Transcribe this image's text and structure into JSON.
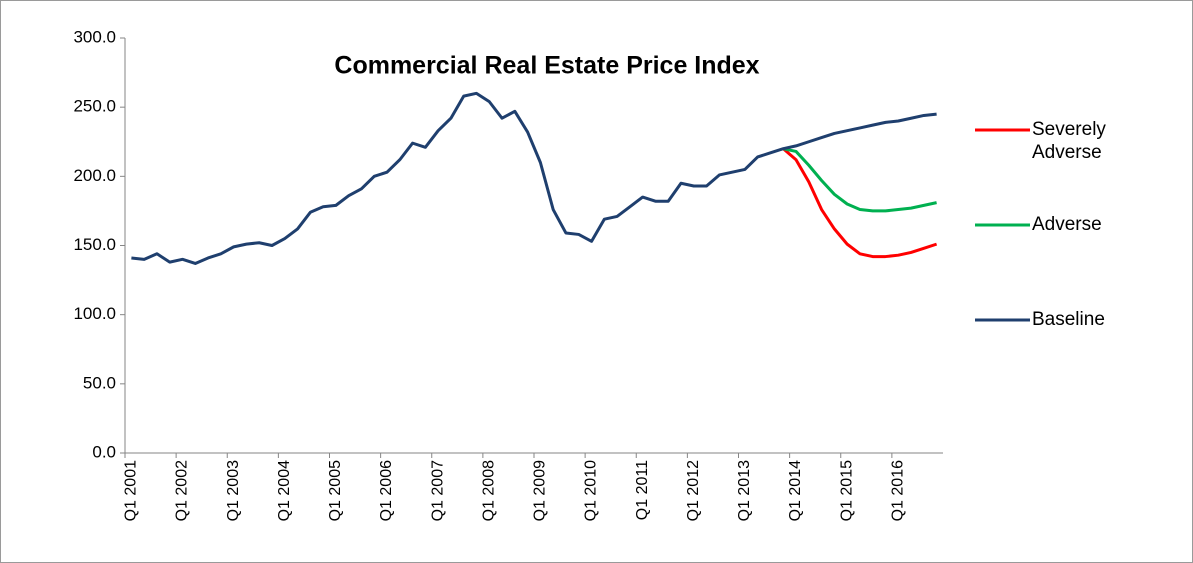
{
  "chart_data": {
    "type": "line",
    "title": "Commercial Real Estate Price Index",
    "categories": [
      "Q1 2001",
      null,
      null,
      null,
      "Q1 2002",
      null,
      null,
      null,
      "Q1 2003",
      null,
      null,
      null,
      "Q1 2004",
      null,
      null,
      null,
      "Q1 2005",
      null,
      null,
      null,
      "Q1 2006",
      null,
      null,
      null,
      "Q1 2007",
      null,
      null,
      null,
      "Q1 2008",
      null,
      null,
      null,
      "Q1 2009",
      null,
      null,
      null,
      "Q1 2010",
      null,
      null,
      null,
      "Q1 2011",
      null,
      null,
      null,
      "Q1 2012",
      null,
      null,
      null,
      "Q1 2013",
      null,
      null,
      null,
      "Q1 2014",
      null,
      null,
      null,
      "Q1 2015",
      null,
      null,
      null,
      "Q1 2016",
      null,
      null,
      null
    ],
    "series": [
      {
        "name": "Severely Adverse",
        "color": "#ff0000",
        "values": [
          null,
          null,
          null,
          null,
          null,
          null,
          null,
          null,
          null,
          null,
          null,
          null,
          null,
          null,
          null,
          null,
          null,
          null,
          null,
          null,
          null,
          null,
          null,
          null,
          null,
          null,
          null,
          null,
          null,
          null,
          null,
          null,
          null,
          null,
          null,
          null,
          null,
          null,
          null,
          null,
          null,
          null,
          null,
          null,
          null,
          null,
          null,
          null,
          null,
          null,
          null,
          220,
          212,
          196,
          176,
          162,
          151,
          144,
          142,
          142,
          143,
          145,
          148,
          151
        ]
      },
      {
        "name": "Adverse",
        "color": "#00b050",
        "values": [
          null,
          null,
          null,
          null,
          null,
          null,
          null,
          null,
          null,
          null,
          null,
          null,
          null,
          null,
          null,
          null,
          null,
          null,
          null,
          null,
          null,
          null,
          null,
          null,
          null,
          null,
          null,
          null,
          null,
          null,
          null,
          null,
          null,
          null,
          null,
          null,
          null,
          null,
          null,
          null,
          null,
          null,
          null,
          null,
          null,
          null,
          null,
          null,
          null,
          null,
          null,
          220,
          218,
          208,
          197,
          187,
          180,
          176,
          175,
          175,
          176,
          177,
          179,
          181
        ]
      },
      {
        "name": "Baseline",
        "color": "#1f3f6e",
        "values": [
          141,
          140,
          144,
          138,
          140,
          137,
          141,
          144,
          149,
          151,
          152,
          150,
          155,
          162,
          174,
          178,
          179,
          186,
          191,
          200,
          203,
          212,
          224,
          221,
          233,
          242,
          258,
          260,
          254,
          242,
          247,
          232,
          210,
          176,
          159,
          158,
          153,
          169,
          171,
          178,
          185,
          182,
          182,
          195,
          193,
          193,
          201,
          203,
          205,
          214,
          217,
          220,
          222,
          225,
          228,
          231,
          233,
          235,
          237,
          239,
          240,
          242,
          244,
          245
        ]
      }
    ],
    "ylim": [
      0,
      300
    ],
    "yticks": [
      {
        "value": 0,
        "label": "0.0"
      },
      {
        "value": 50,
        "label": "50.0"
      },
      {
        "value": 100,
        "label": "100.0"
      },
      {
        "value": 150,
        "label": "150.0"
      },
      {
        "value": 200,
        "label": "200.0"
      },
      {
        "value": 250,
        "label": "250.0"
      },
      {
        "value": 300,
        "label": "300.0"
      }
    ],
    "grid": false,
    "legend": "right"
  }
}
